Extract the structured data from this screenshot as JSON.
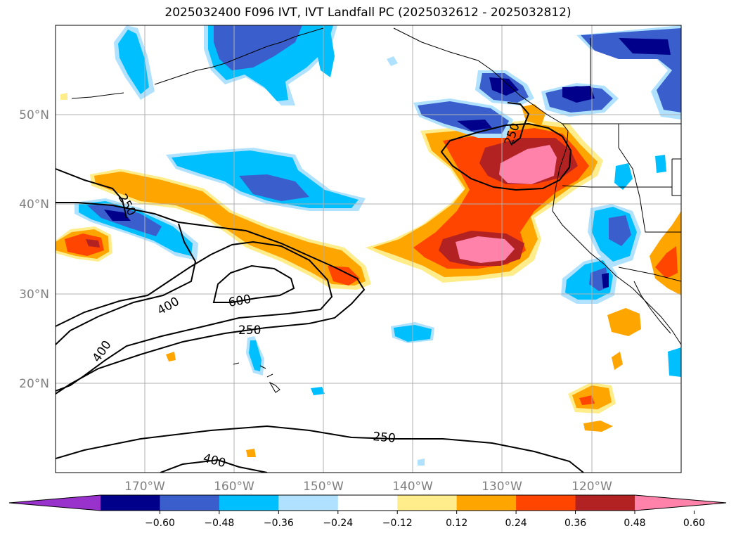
{
  "title": "2025032400 F096 IVT, IVT Landfall PC (2025032612 - 2025032812)",
  "map": {
    "lon_labels": [
      "170°W",
      "160°W",
      "150°W",
      "140°W",
      "130°W",
      "120°W"
    ],
    "lat_labels": [
      "50°N",
      "40°N",
      "30°N",
      "20°N"
    ],
    "extent": {
      "lon": [
        -180,
        -110
      ],
      "lat": [
        10,
        60
      ]
    }
  },
  "ivt_contours": {
    "levels": [
      250,
      400,
      600
    ],
    "labels": [
      "250",
      "250",
      "250",
      "250",
      "400",
      "400",
      "400",
      "600"
    ]
  },
  "colorbar": {
    "ticks": [
      "−0.60",
      "−0.48",
      "−0.36",
      "−0.24",
      "−0.12",
      "0.12",
      "0.24",
      "0.36",
      "0.48",
      "0.60"
    ],
    "colors": [
      "#9932cc",
      "#00008b",
      "#3a5fcd",
      "#00bfff",
      "#b0e2ff",
      "#ffffff",
      "#ffec8b",
      "#ffa500",
      "#ff4500",
      "#b22222",
      "#ff82ab"
    ]
  }
}
